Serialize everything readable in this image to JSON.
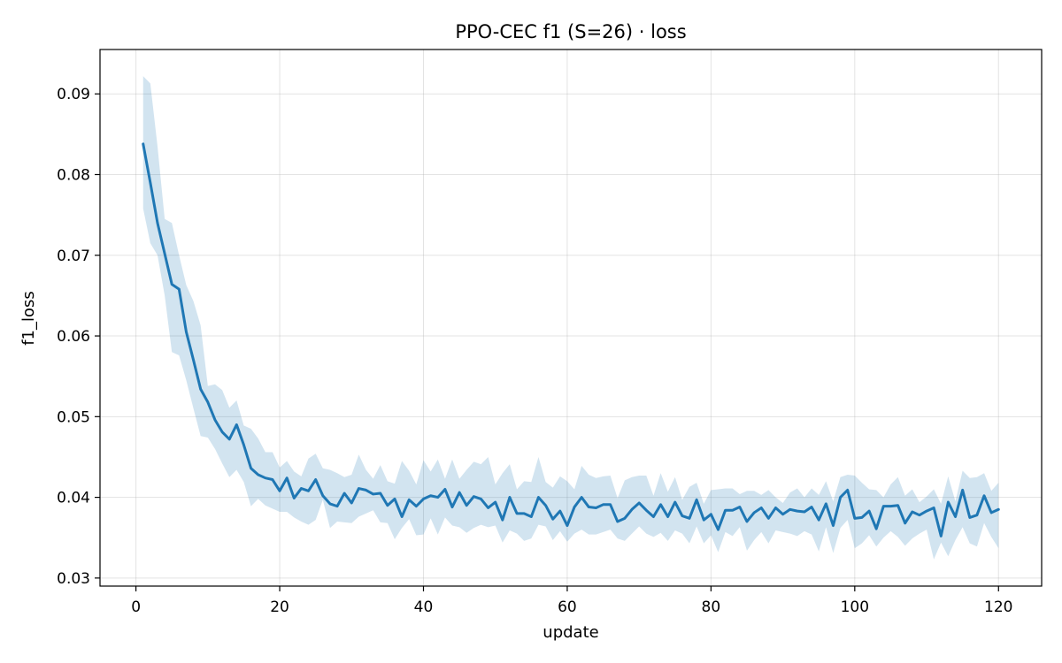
{
  "chart_data": {
    "type": "line",
    "title": "PPO-CEC f1 (S=26) · loss",
    "xlabel": "update",
    "ylabel": "f1_loss",
    "xlim": [
      -5,
      126
    ],
    "ylim": [
      0.029,
      0.0955
    ],
    "xticks": [
      0,
      20,
      40,
      60,
      80,
      100,
      120
    ],
    "yticks": [
      0.03,
      0.04,
      0.05,
      0.06,
      0.07,
      0.08,
      0.09
    ],
    "xtick_labels": [
      "0",
      "20",
      "40",
      "60",
      "80",
      "100",
      "120"
    ],
    "ytick_labels": [
      "0.03",
      "0.04",
      "0.05",
      "0.06",
      "0.07",
      "0.08",
      "0.09"
    ],
    "grid": true,
    "colors": {
      "line": "#1f77b4",
      "band": "#1f77b4"
    },
    "series": [
      {
        "x": [
          1,
          2,
          3,
          4,
          5,
          6,
          7,
          8,
          9,
          10,
          11,
          12,
          13,
          14,
          15,
          16,
          17,
          18,
          19,
          20,
          21,
          22,
          23,
          24,
          25,
          26,
          27,
          28,
          29,
          30,
          31,
          32,
          33,
          34,
          35,
          36,
          37,
          38,
          39,
          40,
          41,
          42,
          43,
          44,
          45,
          46,
          47,
          48,
          49,
          50,
          51,
          52,
          53,
          54,
          55,
          56,
          57,
          58,
          59,
          60,
          61,
          62,
          63,
          64,
          65,
          66,
          67,
          68,
          69,
          70,
          71,
          72,
          73,
          74,
          75,
          76,
          77,
          78,
          79,
          80,
          81,
          82,
          83,
          84,
          85,
          86,
          87,
          88,
          89,
          90,
          91,
          92,
          93,
          94,
          95,
          96,
          97,
          98,
          99,
          100,
          101,
          102,
          103,
          104,
          105,
          106,
          107,
          108,
          109,
          110,
          111,
          112,
          113,
          114,
          115,
          116,
          117,
          118,
          119,
          120
        ],
        "mean": [
          0.0838,
          0.079,
          0.074,
          0.0702,
          0.0664,
          0.0658,
          0.0605,
          0.057,
          0.0534,
          0.0518,
          0.0496,
          0.0481,
          0.0472,
          0.049,
          0.0465,
          0.0436,
          0.0428,
          0.0424,
          0.0422,
          0.0408,
          0.0424,
          0.0399,
          0.0411,
          0.0408,
          0.0422,
          0.0402,
          0.0392,
          0.0389,
          0.0405,
          0.0393,
          0.0411,
          0.0409,
          0.0404,
          0.0405,
          0.039,
          0.0398,
          0.0376,
          0.0397,
          0.0389,
          0.0398,
          0.0402,
          0.04,
          0.041,
          0.0388,
          0.0406,
          0.039,
          0.0401,
          0.0398,
          0.0387,
          0.0394,
          0.0372,
          0.04,
          0.038,
          0.038,
          0.0376,
          0.04,
          0.039,
          0.0373,
          0.0383,
          0.0365,
          0.0388,
          0.04,
          0.0388,
          0.0387,
          0.0391,
          0.0391,
          0.037,
          0.0374,
          0.0385,
          0.0393,
          0.0384,
          0.0376,
          0.0391,
          0.0376,
          0.0394,
          0.0377,
          0.0374,
          0.0397,
          0.0372,
          0.0379,
          0.036,
          0.0384,
          0.0384,
          0.0388,
          0.037,
          0.0381,
          0.0387,
          0.0374,
          0.0387,
          0.0379,
          0.0385,
          0.0383,
          0.0382,
          0.0388,
          0.0372,
          0.0392,
          0.0365,
          0.04,
          0.0409,
          0.0374,
          0.0375,
          0.0383,
          0.0361,
          0.0389,
          0.0389,
          0.039,
          0.0368,
          0.0382,
          0.0378,
          0.0383,
          0.0387,
          0.0352,
          0.0394,
          0.0376,
          0.0409,
          0.0375,
          0.0378,
          0.0402,
          0.0381,
          0.0385
        ],
        "lower": [
          0.0758,
          0.0715,
          0.07,
          0.065,
          0.058,
          0.0576,
          0.0545,
          0.051,
          0.0476,
          0.0474,
          0.046,
          0.0442,
          0.0425,
          0.0434,
          0.0419,
          0.0389,
          0.0398,
          0.039,
          0.0386,
          0.0382,
          0.0382,
          0.0375,
          0.037,
          0.0366,
          0.0372,
          0.0397,
          0.0362,
          0.037,
          0.0369,
          0.0368,
          0.0376,
          0.038,
          0.0384,
          0.0369,
          0.0368,
          0.0348,
          0.0362,
          0.0373,
          0.0353,
          0.0354,
          0.0374,
          0.0354,
          0.0375,
          0.0365,
          0.0363,
          0.0356,
          0.0362,
          0.0366,
          0.0363,
          0.0365,
          0.0344,
          0.0359,
          0.0355,
          0.0346,
          0.0349,
          0.0366,
          0.0364,
          0.0347,
          0.0358,
          0.0345,
          0.0355,
          0.036,
          0.0354,
          0.0354,
          0.0357,
          0.036,
          0.0349,
          0.0346,
          0.0355,
          0.0364,
          0.0355,
          0.0351,
          0.0356,
          0.0346,
          0.0359,
          0.0355,
          0.0343,
          0.0364,
          0.0343,
          0.0353,
          0.0332,
          0.0357,
          0.0352,
          0.0363,
          0.0334,
          0.0347,
          0.0357,
          0.0343,
          0.0359,
          0.0357,
          0.0355,
          0.0352,
          0.0358,
          0.0354,
          0.0333,
          0.0363,
          0.0331,
          0.0362,
          0.0372,
          0.0337,
          0.0343,
          0.0353,
          0.0339,
          0.035,
          0.0358,
          0.0351,
          0.034,
          0.0349,
          0.0355,
          0.036,
          0.0323,
          0.0344,
          0.0327,
          0.0347,
          0.0363,
          0.0343,
          0.0339,
          0.0368,
          0.0351,
          0.0337
        ],
        "upper": [
          0.0922,
          0.0913,
          0.0835,
          0.0745,
          0.074,
          0.07,
          0.0663,
          0.0643,
          0.0613,
          0.0538,
          0.054,
          0.0533,
          0.0511,
          0.052,
          0.0489,
          0.0485,
          0.0473,
          0.0456,
          0.0456,
          0.0437,
          0.0445,
          0.0432,
          0.0426,
          0.0448,
          0.0454,
          0.0436,
          0.0434,
          0.043,
          0.0425,
          0.0428,
          0.0453,
          0.0434,
          0.0423,
          0.044,
          0.042,
          0.0417,
          0.0445,
          0.0433,
          0.0416,
          0.0446,
          0.0432,
          0.0447,
          0.0423,
          0.0447,
          0.0423,
          0.0434,
          0.0444,
          0.0441,
          0.045,
          0.0416,
          0.043,
          0.0441,
          0.041,
          0.042,
          0.0419,
          0.045,
          0.0419,
          0.0412,
          0.0426,
          0.042,
          0.041,
          0.0439,
          0.0428,
          0.0424,
          0.0426,
          0.0427,
          0.0399,
          0.0421,
          0.0425,
          0.0427,
          0.0427,
          0.0402,
          0.043,
          0.0407,
          0.0425,
          0.0397,
          0.0413,
          0.0418,
          0.0392,
          0.0409,
          0.041,
          0.0411,
          0.0411,
          0.0404,
          0.0408,
          0.0408,
          0.0403,
          0.0409,
          0.04,
          0.0393,
          0.0406,
          0.0411,
          0.04,
          0.0411,
          0.0403,
          0.042,
          0.0395,
          0.0425,
          0.0428,
          0.0427,
          0.0418,
          0.041,
          0.0409,
          0.04,
          0.0416,
          0.0425,
          0.0402,
          0.041,
          0.0394,
          0.0401,
          0.041,
          0.0392,
          0.0426,
          0.0395,
          0.0433,
          0.0424,
          0.0425,
          0.043,
          0.0408,
          0.0418
        ]
      }
    ]
  }
}
